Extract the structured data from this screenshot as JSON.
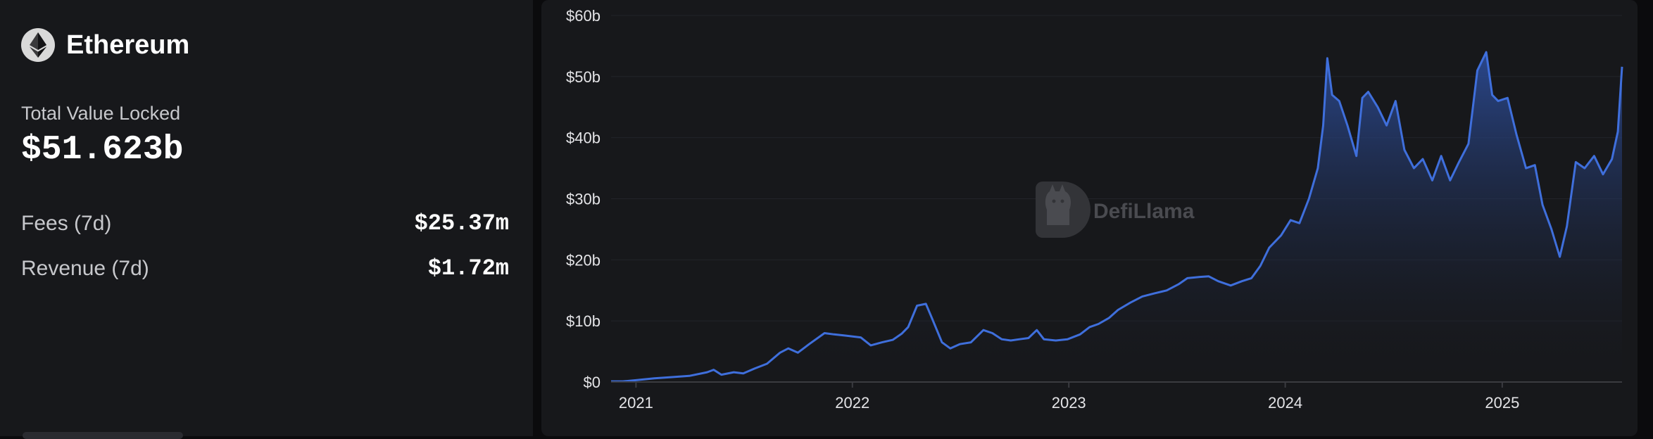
{
  "chain": {
    "name": "Ethereum",
    "logo_icon": "ethereum-icon"
  },
  "stats": {
    "tvl_label": "Total Value Locked",
    "tvl_value": "$51.623b",
    "fees_label": "Fees (7d)",
    "fees_value": "$25.37m",
    "revenue_label": "Revenue (7d)",
    "revenue_value": "$1.72m"
  },
  "watermark": {
    "text": "DefiLlama",
    "icon": "defillama-logo-icon"
  },
  "chart_data": {
    "type": "area",
    "title": "",
    "xlabel": "",
    "ylabel": "",
    "x_ticks": [
      "2021",
      "2022",
      "2023",
      "2024",
      "2025"
    ],
    "y_ticks": [
      "$0",
      "$10b",
      "$20b",
      "$30b",
      "$40b",
      "$50b",
      "$60b"
    ],
    "ylim": [
      0,
      60
    ],
    "xlim": [
      "2020-11-20",
      "2025-07-22"
    ],
    "grid": true,
    "legend": "none",
    "line_color": "#3f6fdc",
    "fill_color": "#2d4fa0",
    "series": [
      {
        "x": [
          "2020-11-20",
          "2020-12-10",
          "2021-01-01",
          "2021-02-01",
          "2021-03-01",
          "2021-04-01",
          "2021-05-01",
          "2021-05-12",
          "2021-05-25",
          "2021-06-15",
          "2021-07-01",
          "2021-07-20",
          "2021-08-10",
          "2021-09-01",
          "2021-09-15",
          "2021-10-01",
          "2021-10-20",
          "2021-11-15",
          "2021-12-01",
          "2021-12-20",
          "2022-01-15",
          "2022-02-01",
          "2022-02-20",
          "2022-03-10",
          "2022-03-25",
          "2022-04-05",
          "2022-04-20",
          "2022-05-05",
          "2022-05-15",
          "2022-06-01",
          "2022-06-15",
          "2022-07-01",
          "2022-07-20",
          "2022-08-10",
          "2022-08-25",
          "2022-09-10",
          "2022-09-25",
          "2022-10-10",
          "2022-10-25",
          "2022-11-08",
          "2022-11-20",
          "2022-12-10",
          "2022-12-30",
          "2023-01-20",
          "2023-02-05",
          "2023-02-20",
          "2023-03-10",
          "2023-03-25",
          "2023-04-15",
          "2023-05-05",
          "2023-05-25",
          "2023-06-15",
          "2023-07-05",
          "2023-07-20",
          "2023-08-10",
          "2023-08-25",
          "2023-09-10",
          "2023-10-01",
          "2023-10-20",
          "2023-11-05",
          "2023-11-20",
          "2023-12-05",
          "2023-12-25",
          "2024-01-10",
          "2024-01-25",
          "2024-02-10",
          "2024-02-25",
          "2024-03-05",
          "2024-03-12",
          "2024-03-20",
          "2024-04-01",
          "2024-04-15",
          "2024-04-30",
          "2024-05-10",
          "2024-05-20",
          "2024-06-05",
          "2024-06-20",
          "2024-07-05",
          "2024-07-20",
          "2024-08-05",
          "2024-08-20",
          "2024-09-05",
          "2024-09-20",
          "2024-10-05",
          "2024-10-20",
          "2024-11-05",
          "2024-11-20",
          "2024-12-05",
          "2024-12-15",
          "2024-12-25",
          "2025-01-10",
          "2025-01-25",
          "2025-02-10",
          "2025-02-25",
          "2025-03-10",
          "2025-03-25",
          "2025-04-08",
          "2025-04-20",
          "2025-05-05",
          "2025-05-20",
          "2025-06-05",
          "2025-06-20",
          "2025-07-05",
          "2025-07-15",
          "2025-07-22"
        ],
        "values": [
          0.1,
          0.1,
          0.3,
          0.6,
          0.8,
          1.0,
          1.6,
          2.0,
          1.2,
          1.6,
          1.4,
          2.2,
          3.0,
          4.8,
          5.5,
          4.8,
          6.2,
          8.0,
          7.8,
          7.6,
          7.3,
          6.0,
          6.5,
          6.9,
          7.9,
          9.0,
          12.5,
          12.8,
          10.5,
          6.5,
          5.5,
          6.2,
          6.5,
          8.5,
          8.0,
          7.0,
          6.8,
          7.0,
          7.2,
          8.5,
          7.0,
          6.8,
          7.0,
          7.8,
          9.0,
          9.5,
          10.5,
          11.8,
          13.0,
          14.0,
          14.5,
          15.0,
          16.0,
          17.0,
          17.2,
          17.3,
          16.5,
          15.8,
          16.5,
          17.0,
          19.0,
          22.0,
          24.0,
          26.5,
          26.0,
          30.0,
          35.0,
          42.0,
          53.0,
          47.0,
          46.0,
          42.0,
          37.0,
          46.5,
          47.5,
          45.0,
          42.0,
          46.0,
          38.0,
          35.0,
          36.5,
          33.0,
          37.0,
          33.0,
          36.0,
          39.0,
          51.0,
          54.0,
          47.0,
          46.0,
          46.5,
          40.5,
          35.0,
          35.5,
          29.0,
          25.0,
          20.5,
          25.5,
          36.0,
          35.0,
          37.0,
          34.0,
          36.5,
          41.0,
          51.6
        ]
      }
    ]
  }
}
